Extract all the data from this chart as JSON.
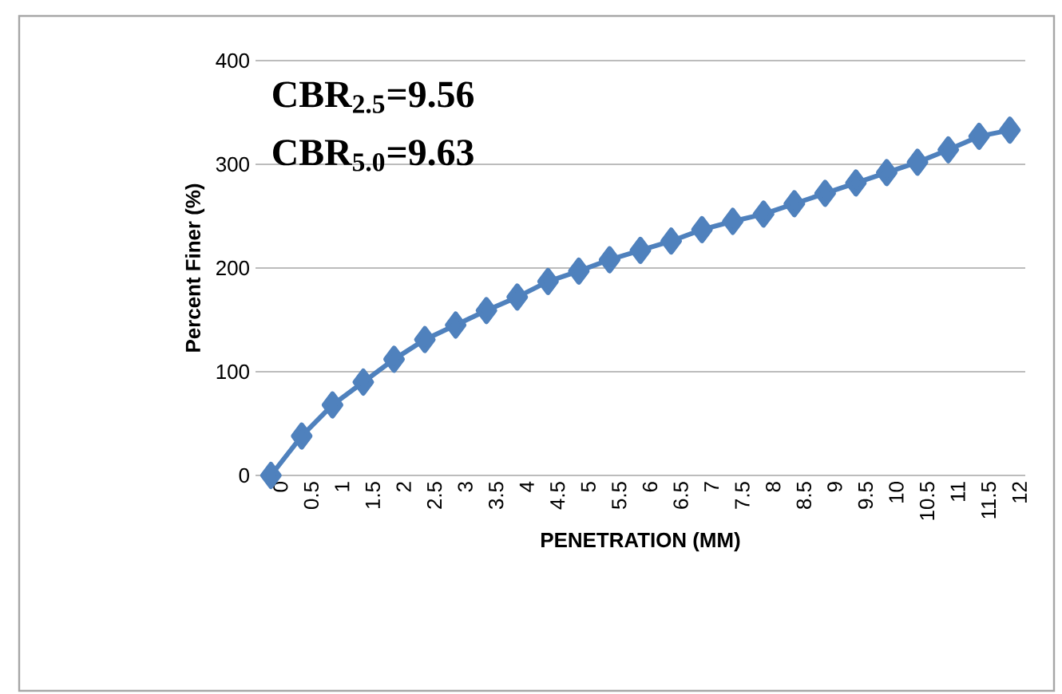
{
  "chart_data": {
    "type": "line",
    "xlabel": "PENETRATION (MM)",
    "ylabel": "Percent Finer (%)",
    "categories": [
      "0",
      "0.5",
      "1",
      "1.5",
      "2",
      "2.5",
      "3",
      "3.5",
      "4",
      "4.5",
      "5",
      "5.5",
      "6",
      "6.5",
      "7",
      "7.5",
      "8",
      "8.5",
      "9",
      "9.5",
      "10",
      "10.5",
      "11",
      "11.5",
      "12"
    ],
    "series": [
      {
        "color": "#4f81bd",
        "values": [
          0,
          38,
          68,
          90,
          112,
          131,
          145,
          159,
          172,
          187,
          197,
          208,
          217,
          226,
          237,
          245,
          252,
          262,
          272,
          282,
          292,
          302,
          314,
          327,
          333
        ]
      }
    ],
    "ylim": [
      0,
      400
    ],
    "yticks": [
      0,
      100,
      200,
      300,
      400
    ],
    "grid": "y",
    "marker": "diamond",
    "line_style": "solid",
    "annotations": [
      "CBR$_{2.5}$=9.56",
      "CBR$_{5.0}$=9.63"
    ]
  }
}
